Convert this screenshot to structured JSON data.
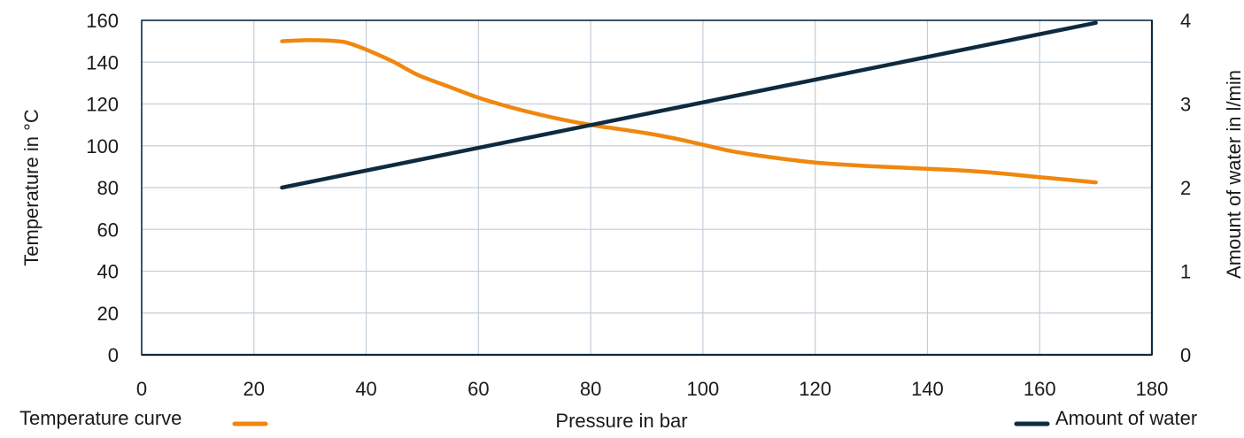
{
  "chart_data": {
    "type": "line",
    "xlabel": "Pressure in bar",
    "ylabel_left": "Temperature in °C",
    "ylabel_right": "Amount of water in l/min",
    "xlim": [
      0,
      180
    ],
    "ylim_left": [
      0,
      160
    ],
    "ylim_right": [
      0,
      4
    ],
    "x_ticks": [
      "0",
      "20",
      "40",
      "60",
      "80",
      "100",
      "120",
      "140",
      "160",
      "180"
    ],
    "y_left_ticks": [
      "0",
      "20",
      "40",
      "60",
      "80",
      "100",
      "120",
      "140",
      "160"
    ],
    "y_right_ticks": [
      "0",
      "1",
      "2",
      "3",
      "4"
    ],
    "grid": true,
    "series": [
      {
        "name": "Temperature curve",
        "axis": "left",
        "color": "#F0870F",
        "x": [
          25,
          30,
          35,
          37,
          40,
          43,
          45,
          48,
          50,
          55,
          60,
          65,
          70,
          75,
          80,
          85,
          90,
          95,
          100,
          105,
          110,
          115,
          120,
          125,
          130,
          140,
          150,
          160,
          170
        ],
        "y": [
          150,
          150.5,
          150,
          149,
          146,
          142.5,
          140,
          135.5,
          133,
          128,
          123,
          119,
          115.5,
          112.5,
          110,
          108,
          106,
          103.5,
          100.5,
          97.5,
          95.3,
          93.5,
          92,
          91,
          90.2,
          89,
          87.5,
          85,
          82.5
        ]
      },
      {
        "name": "Amount of water",
        "axis": "right",
        "color": "#0E2A3F",
        "x": [
          25,
          170
        ],
        "y": [
          2,
          3.97
        ]
      }
    ],
    "legend": [
      {
        "label": "Temperature curve",
        "color": "#F0870F",
        "placement": "bottom-left"
      },
      {
        "label": "Amount of water",
        "color": "#0E2A3F",
        "placement": "bottom-right"
      }
    ]
  }
}
